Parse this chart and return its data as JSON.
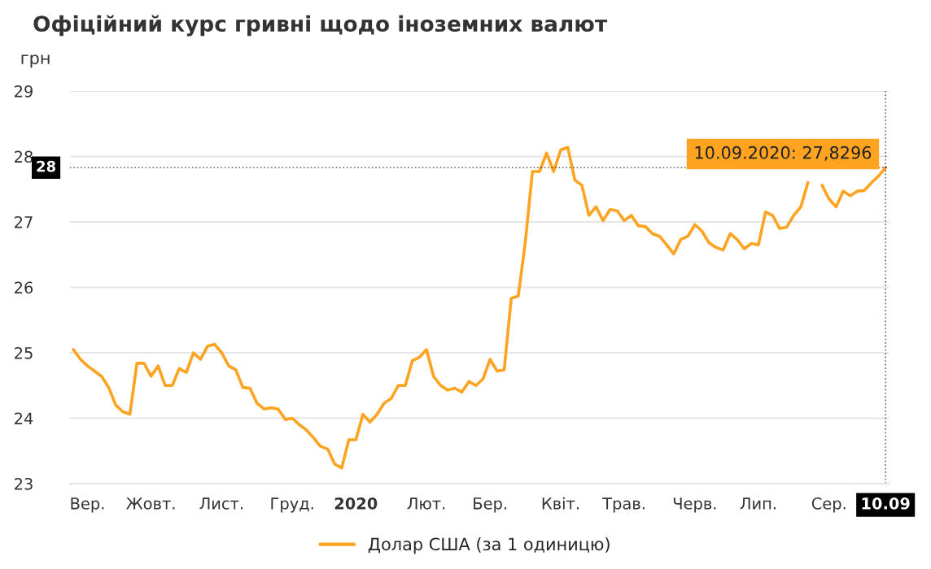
{
  "chart_data": {
    "type": "line",
    "title": "Офіційний курс гривні щодо іноземних валют",
    "ylabel": "грн",
    "categories": [
      null,
      null,
      "Вер.",
      null,
      null,
      null,
      null,
      null,
      null,
      null,
      null,
      "Жовт.",
      null,
      null,
      null,
      null,
      null,
      null,
      null,
      null,
      null,
      "Лист.",
      null,
      null,
      null,
      null,
      null,
      null,
      null,
      null,
      null,
      "Груд.",
      null,
      null,
      null,
      null,
      null,
      null,
      null,
      null,
      "2020",
      null,
      null,
      null,
      null,
      null,
      null,
      null,
      null,
      null,
      "Лют.",
      null,
      null,
      null,
      null,
      null,
      null,
      null,
      null,
      "Бер.",
      null,
      null,
      null,
      null,
      null,
      null,
      null,
      null,
      null,
      "Квіт.",
      null,
      null,
      null,
      null,
      null,
      null,
      null,
      null,
      "Трав.",
      null,
      null,
      null,
      null,
      null,
      null,
      null,
      null,
      null,
      "Черв.",
      null,
      null,
      null,
      null,
      null,
      null,
      null,
      null,
      "Лип.",
      null,
      null,
      null,
      null,
      null,
      null,
      null,
      null,
      null,
      "Сер.",
      null,
      null,
      null,
      null,
      null,
      null,
      null,
      "10.09"
    ],
    "series": [
      {
        "name": "Долар США (за 1 одиницю)",
        "color": "#ffa321",
        "values": [
          25.05,
          24.9,
          24.8,
          24.72,
          24.64,
          24.47,
          24.2,
          24.1,
          24.06,
          24.84,
          24.84,
          24.64,
          24.8,
          24.5,
          24.5,
          24.76,
          24.7,
          25.0,
          24.9,
          25.1,
          25.13,
          25.0,
          24.8,
          24.74,
          24.47,
          24.46,
          24.23,
          24.14,
          24.16,
          24.14,
          23.98,
          24.0,
          23.9,
          23.82,
          23.7,
          23.57,
          23.53,
          23.3,
          23.24,
          23.67,
          23.67,
          24.06,
          23.94,
          24.06,
          24.23,
          24.3,
          24.5,
          24.5,
          24.88,
          24.93,
          25.05,
          24.64,
          24.5,
          24.43,
          24.46,
          24.4,
          24.56,
          24.5,
          24.6,
          24.9,
          24.72,
          24.74,
          25.83,
          25.87,
          26.7,
          27.77,
          27.77,
          28.05,
          27.77,
          28.1,
          28.14,
          27.64,
          27.56,
          27.1,
          27.23,
          27.02,
          27.19,
          27.17,
          27.02,
          27.1,
          26.94,
          26.93,
          26.82,
          26.78,
          26.65,
          26.51,
          26.73,
          26.78,
          26.96,
          26.86,
          26.68,
          26.61,
          26.57,
          26.82,
          26.73,
          26.59,
          26.67,
          26.65,
          27.15,
          27.1,
          26.9,
          26.92,
          27.1,
          27.23,
          27.6,
          null,
          27.56,
          27.35,
          27.23,
          27.47,
          27.4,
          27.47,
          27.48,
          27.6,
          27.7,
          27.8296
        ]
      }
    ],
    "ylim": [
      23,
      29
    ],
    "yticks": [
      23,
      24,
      25,
      26,
      27,
      28,
      29
    ],
    "ref_lines": [
      {
        "axis": "y",
        "value": 27.8296,
        "label": "28",
        "color": "#000000",
        "line_style": "dotted"
      },
      {
        "axis": "x",
        "value": "10.09",
        "color": "#000000",
        "line_style": "dotted"
      }
    ],
    "annotations": [
      {
        "text": "10.09.2020: 27,8296",
        "x": "10.09",
        "y": 27.8296
      }
    ],
    "grid": "y",
    "legend": "bottom",
    "marker": "none",
    "line_style": "solid"
  }
}
